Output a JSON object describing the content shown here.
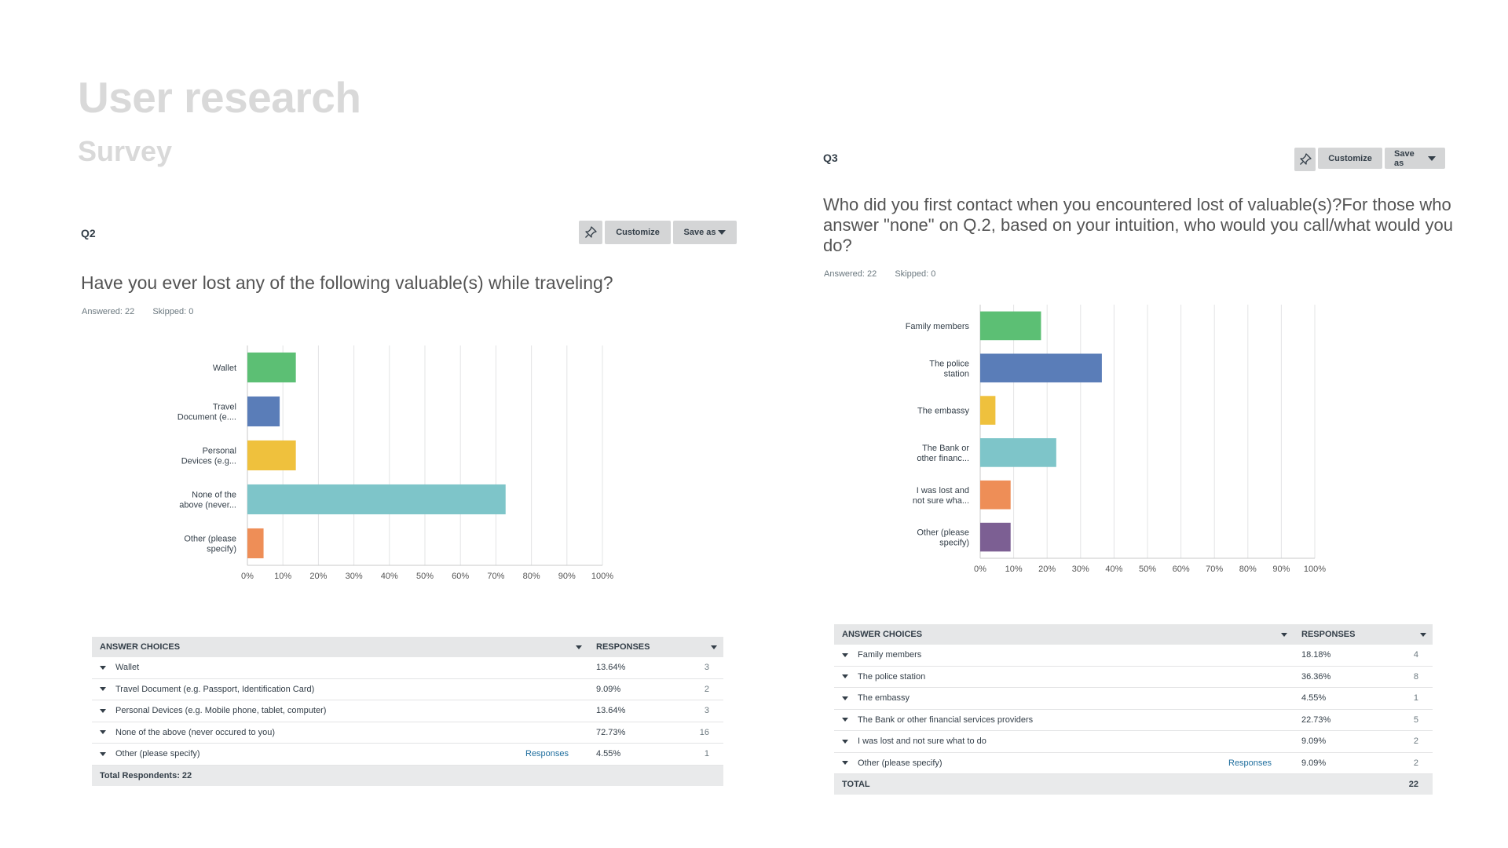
{
  "page": {
    "title": "User research",
    "subtitle": "Survey"
  },
  "toolbar": {
    "pin_icon": "pin-icon",
    "customize_label": "Customize",
    "save_as_label": "Save as"
  },
  "q2": {
    "label": "Q2",
    "question": "Have you ever lost any of the following valuable(s) while traveling?",
    "answered": "Answered: 22",
    "skipped": "Skipped: 0",
    "table": {
      "col_choices": "ANSWER CHOICES",
      "col_responses": "RESPONSES",
      "rows": [
        {
          "choice": "Wallet",
          "pct": "13.64%",
          "count": "3",
          "link": ""
        },
        {
          "choice": "Travel Document (e.g. Passport, Identification Card)",
          "pct": "9.09%",
          "count": "2",
          "link": ""
        },
        {
          "choice": "Personal Devices (e.g. Mobile phone, tablet, computer)",
          "pct": "13.64%",
          "count": "3",
          "link": ""
        },
        {
          "choice": "None of the above (never occured to you)",
          "pct": "72.73%",
          "count": "16",
          "link": ""
        },
        {
          "choice": "Other (please specify)",
          "pct": "4.55%",
          "count": "1",
          "link": "Responses"
        }
      ],
      "footer_label": "Total Respondents: 22"
    }
  },
  "q3": {
    "label": "Q3",
    "question": "Who did you first contact when you encountered lost of valuable(s)?For those who answer \"none\" on Q.2, based on your intuition, who would you call/what would you do?",
    "answered": "Answered: 22",
    "skipped": "Skipped: 0",
    "table": {
      "col_choices": "ANSWER CHOICES",
      "col_responses": "RESPONSES",
      "rows": [
        {
          "choice": "Family members",
          "pct": "18.18%",
          "count": "4",
          "link": ""
        },
        {
          "choice": "The police station",
          "pct": "36.36%",
          "count": "8",
          "link": ""
        },
        {
          "choice": "The embassy",
          "pct": "4.55%",
          "count": "1",
          "link": ""
        },
        {
          "choice": "The Bank or other financial services providers",
          "pct": "22.73%",
          "count": "5",
          "link": ""
        },
        {
          "choice": "I was lost and not sure what to do",
          "pct": "9.09%",
          "count": "2",
          "link": ""
        },
        {
          "choice": "Other (please specify)",
          "pct": "9.09%",
          "count": "2",
          "link": "Responses"
        }
      ],
      "footer_label": "TOTAL",
      "footer_total": "22"
    }
  },
  "chart_data": [
    {
      "id": "q2",
      "type": "bar",
      "orientation": "horizontal",
      "categories": [
        [
          "Wallet"
        ],
        [
          "Travel",
          "Document (e...."
        ],
        [
          "Personal",
          "Devices (e.g..."
        ],
        [
          "None of the",
          "above (never..."
        ],
        [
          "Other (please",
          "specify)"
        ]
      ],
      "values": [
        13.64,
        9.09,
        13.64,
        72.73,
        4.55
      ],
      "colors": [
        "#5cbf74",
        "#5a7db8",
        "#efc13d",
        "#7ec5c9",
        "#ee8e57"
      ],
      "xlim": [
        0,
        100
      ],
      "ticks": [
        "0%",
        "10%",
        "20%",
        "30%",
        "40%",
        "50%",
        "60%",
        "70%",
        "80%",
        "90%",
        "100%"
      ],
      "grid": true
    },
    {
      "id": "q3",
      "type": "bar",
      "orientation": "horizontal",
      "categories": [
        [
          "Family members"
        ],
        [
          "The police",
          "station"
        ],
        [
          "The embassy"
        ],
        [
          "The Bank or",
          "other financ..."
        ],
        [
          "I was lost and",
          "not sure wha..."
        ],
        [
          "Other (please",
          "specify)"
        ]
      ],
      "values": [
        18.18,
        36.36,
        4.55,
        22.73,
        9.09,
        9.09
      ],
      "colors": [
        "#5cbf74",
        "#5a7db8",
        "#efc13d",
        "#7ec5c9",
        "#ee8e57",
        "#7c5f93"
      ],
      "xlim": [
        0,
        100
      ],
      "ticks": [
        "0%",
        "10%",
        "20%",
        "30%",
        "40%",
        "50%",
        "60%",
        "70%",
        "80%",
        "90%",
        "100%"
      ],
      "grid": true
    }
  ]
}
